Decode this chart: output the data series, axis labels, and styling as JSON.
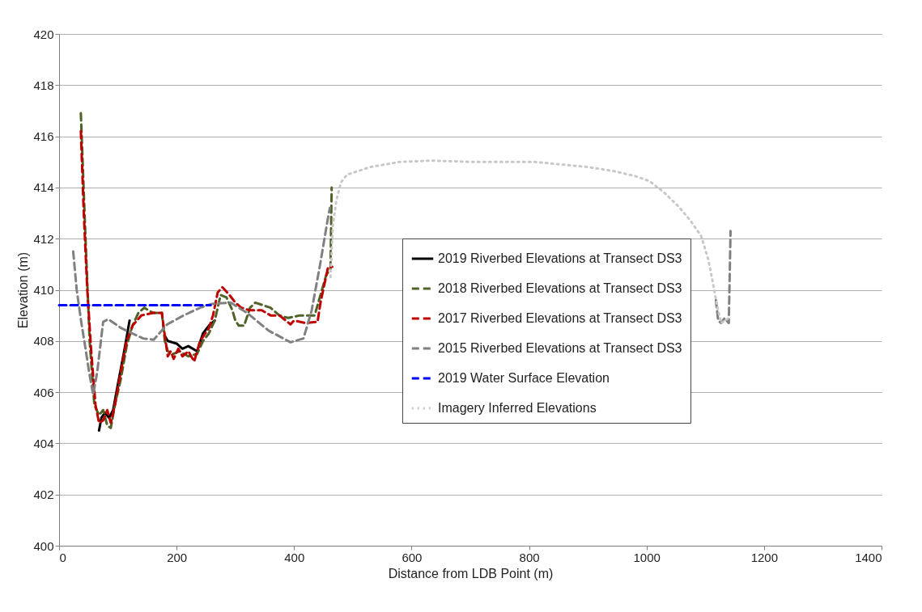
{
  "chart_data": {
    "type": "line",
    "xlabel": "Distance from LDB Point (m)",
    "ylabel": "Elevation (m)",
    "xlim": [
      0,
      1400
    ],
    "xticks": [
      0,
      200,
      400,
      600,
      800,
      1000,
      1200,
      1400
    ],
    "ylim": [
      400,
      420
    ],
    "yticks": [
      400,
      402,
      404,
      406,
      408,
      410,
      412,
      414,
      416,
      418,
      420
    ],
    "grid": "y",
    "legend": "right",
    "marker": "none",
    "series": [
      {
        "name": "2019 Riverbed Elevations at Transect DS3",
        "color": "#000000",
        "line_style": "solid",
        "x": [
          68,
          72,
          78,
          85,
          92,
          100,
          110,
          120,
          130,
          150,
          175,
          180,
          185,
          200,
          210,
          220,
          235,
          245,
          255,
          265
        ],
        "values": [
          404.5,
          405.0,
          405.2,
          405.0,
          405.3,
          406.3,
          407.5,
          408.8,
          null,
          null,
          null,
          408.2,
          408.0,
          407.9,
          407.7,
          407.8,
          407.6,
          408.3,
          408.6,
          408.8
        ]
      },
      {
        "name": "2018 Riverbed Elevations at Transect DS3",
        "color": "#4f6228",
        "line_style": "dashed",
        "x": [
          37,
          45,
          52,
          60,
          68,
          75,
          82,
          88,
          95,
          105,
          115,
          125,
          135,
          145,
          160,
          175,
          180,
          185,
          195,
          205,
          220,
          235,
          245,
          255,
          265,
          275,
          285,
          295,
          300,
          306,
          315,
          325,
          334,
          360,
          375,
          390,
          410,
          435,
          445,
          455,
          462,
          464
        ],
        "values": [
          416.9,
          412.0,
          408.0,
          405.5,
          405.1,
          405.3,
          404.7,
          404.6,
          405.5,
          406.5,
          407.8,
          408.6,
          409.1,
          409.3,
          409.1,
          409.1,
          408.0,
          407.6,
          407.5,
          407.6,
          407.4,
          407.5,
          408.0,
          408.3,
          408.8,
          409.8,
          409.7,
          409.2,
          408.8,
          408.6,
          408.6,
          409.3,
          409.5,
          409.3,
          409.0,
          408.9,
          409.0,
          409.0,
          409.8,
          410.6,
          410.8,
          414.0
        ]
      },
      {
        "name": "2017 Riverbed Elevations at Transect DS3",
        "color": "#c00000",
        "line_style": "dashed",
        "x": [
          37,
          42,
          48,
          55,
          62,
          68,
          75,
          82,
          88,
          95,
          105,
          115,
          125,
          140,
          160,
          175,
          180,
          185,
          190,
          195,
          203,
          210,
          220,
          230,
          240,
          255,
          262,
          270,
          278,
          290,
          300,
          310,
          325,
          345,
          360,
          375,
          394,
          400,
          420,
          440,
          445,
          458,
          465
        ],
        "values": [
          416.2,
          413.0,
          410.0,
          407.5,
          405.5,
          404.8,
          404.9,
          405.3,
          404.8,
          405.5,
          406.8,
          408.0,
          408.6,
          409.0,
          409.1,
          409.1,
          408.2,
          407.4,
          407.6,
          407.3,
          407.7,
          407.4,
          407.6,
          407.2,
          408.0,
          408.5,
          409.0,
          409.9,
          410.1,
          409.8,
          409.5,
          409.3,
          409.2,
          409.2,
          409.0,
          409.0,
          408.65,
          408.8,
          408.7,
          408.75,
          409.5,
          410.9,
          410.9
        ]
      },
      {
        "name": "2015 Riverbed Elevations at Transect DS3",
        "color": "#808080",
        "line_style": "dashed",
        "x": [
          24,
          30,
          38,
          45,
          51,
          58,
          65,
          75,
          84,
          106,
          143,
          161,
          184,
          212,
          240,
          260,
          292,
          320,
          357,
          394,
          416,
          430,
          444,
          458,
          461,
          800,
          1118,
          1122,
          1127,
          1133,
          1140,
          1143
        ],
        "values": [
          411.5,
          410.0,
          408.7,
          407.7,
          406.8,
          405.9,
          406.8,
          408.75,
          408.85,
          408.5,
          408.1,
          408.05,
          408.65,
          409.0,
          409.3,
          409.45,
          409.5,
          409.1,
          408.4,
          407.95,
          408.1,
          409.2,
          410.95,
          412.85,
          413.2,
          null,
          409.6,
          408.8,
          408.7,
          408.9,
          408.7,
          412.3
        ]
      },
      {
        "name": "2019 Water Surface Elevation",
        "color": "#0000ff",
        "line_style": "dashed",
        "x": [
          0,
          258
        ],
        "values": [
          409.4,
          409.4
        ]
      },
      {
        "name": "Imagery Inferred Elevations",
        "color": "#c8c8c8",
        "line_style": "dotted",
        "x": [
          462,
          466,
          472,
          480,
          490,
          530,
          580,
          635,
          700,
          766,
          810,
          854,
          900,
          942,
          980,
          1005,
          1030,
          1054,
          1075,
          1093,
          1105,
          1111,
          1120,
          1127,
          1140
        ],
        "values": [
          410.5,
          412.5,
          413.5,
          414.2,
          414.5,
          414.8,
          415.0,
          415.05,
          415.0,
          415.0,
          415.0,
          414.9,
          414.8,
          414.65,
          414.45,
          414.25,
          413.8,
          413.27,
          412.7,
          412.1,
          411.2,
          410.5,
          409.4,
          408.7,
          408.9
        ]
      }
    ]
  }
}
